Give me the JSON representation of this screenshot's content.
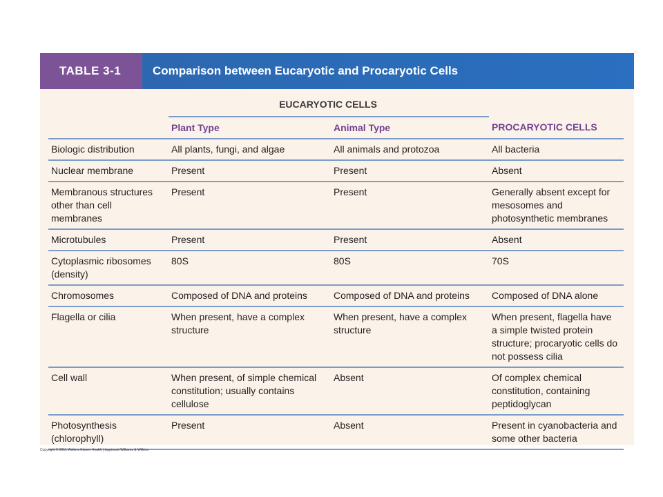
{
  "header": {
    "label": "TABLE 3-1",
    "title": "Comparison between Eucaryotic and Procaryotic Cells"
  },
  "table": {
    "group_header": "EUCARYOTIC CELLS",
    "columns": [
      "Plant Type",
      "Animal Type",
      "PROCARYOTIC CELLS"
    ],
    "rows": [
      [
        "Biologic distribution",
        "All plants, fungi, and algae",
        "All animals and protozoa",
        "All bacteria"
      ],
      [
        "Nuclear membrane",
        "Present",
        "Present",
        "Absent"
      ],
      [
        "Membranous structures other than cell membranes",
        "Present",
        "Present",
        "Generally absent except for mesosomes and photosynthetic membranes"
      ],
      [
        "Microtubules",
        "Present",
        "Present",
        "Absent"
      ],
      [
        "Cytoplasmic ribosomes (density)",
        "80S",
        "80S",
        "70S"
      ],
      [
        "Chromosomes",
        "Composed of DNA and proteins",
        "Composed of DNA and proteins",
        "Composed of DNA alone"
      ],
      [
        "Flagella or cilia",
        "When present, have a complex structure",
        "When present, have a complex structure",
        "When present, flagella have a simple twisted protein structure; procaryotic cells do not possess cilia"
      ],
      [
        "Cell wall",
        "When present, of simple chemical constitution; usually contains cellulose",
        "Absent",
        "Of complex chemical constitution, containing peptidoglycan"
      ],
      [
        "Photosynthesis (chlorophyll)",
        "Present",
        "Absent",
        "Present in cyanobacteria and some other bacteria"
      ]
    ]
  },
  "footer": {
    "copyright": "Copyright © 2011 Wolters Kluwer Health | Lippincott Williams & Wilkins"
  }
}
